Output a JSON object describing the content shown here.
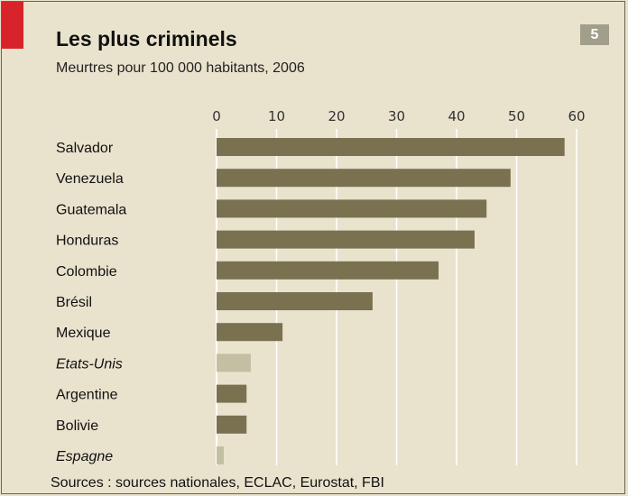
{
  "header": {
    "title": "Les plus criminels",
    "subtitle": "Meurtres pour 100 000 habitants, 2006",
    "badge": "5"
  },
  "footer": {
    "source": "Sources : sources nationales, ECLAC, Eurostat, FBI"
  },
  "colors": {
    "accent": "#d8232a",
    "bar": "#7a7150",
    "bar_highlight": "#c3bfa3",
    "grid": "#ffffff",
    "background": "#e9e2cd"
  },
  "chart_data": {
    "type": "bar",
    "orientation": "horizontal",
    "title": "Les plus criminels",
    "subtitle": "Meurtres pour 100 000 habitants, 2006",
    "categories": [
      "Salvador",
      "Venezuela",
      "Guatemala",
      "Honduras",
      "Colombie",
      "Brésil",
      "Mexique",
      "Etats-Unis",
      "Argentine",
      "Bolivie",
      "Espagne"
    ],
    "values": [
      58,
      49,
      45,
      43,
      37,
      26,
      11,
      5.7,
      5,
      5,
      1.2
    ],
    "italic_categories": [
      "Etats-Unis",
      "Espagne"
    ],
    "highlighted_categories": [
      "Etats-Unis",
      "Espagne"
    ],
    "xlim": [
      0,
      60
    ],
    "xticks": [
      0,
      10,
      20,
      30,
      40,
      50,
      60
    ],
    "xaxis_position": "top",
    "grid": true,
    "legend": "none"
  }
}
